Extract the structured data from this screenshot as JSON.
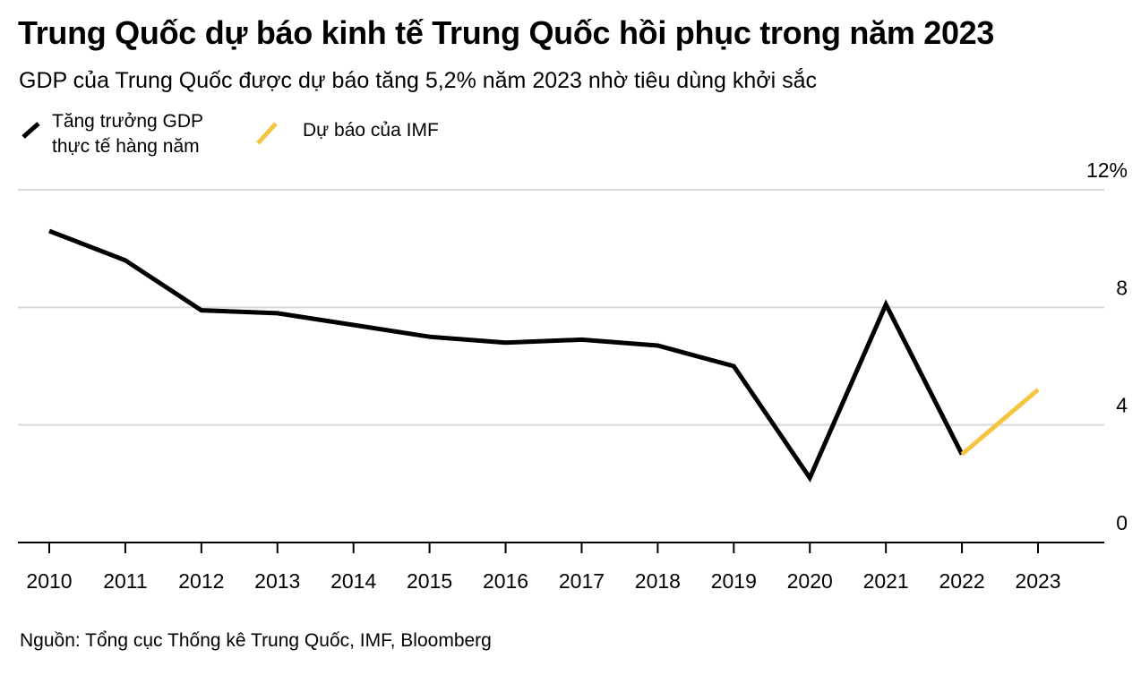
{
  "chart_data": {
    "type": "line",
    "title": "Trung Quốc dự báo kinh tế Trung Quốc hồi phục trong năm 2023",
    "subtitle": "GDP của Trung Quốc được dự báo tăng 5,2% năm 2023 nhờ tiêu dùng khởi sắc",
    "source": "Nguồn: Tổng cục Thống kê Trung Quốc, IMF, Bloomberg",
    "x": [
      "2010",
      "2011",
      "2012",
      "2013",
      "2014",
      "2015",
      "2016",
      "2017",
      "2018",
      "2019",
      "2020",
      "2021",
      "2022",
      "2023"
    ],
    "ylim": [
      0,
      12
    ],
    "yticks": [
      {
        "value": 0,
        "label": "0"
      },
      {
        "value": 4,
        "label": "4"
      },
      {
        "value": 8,
        "label": "8"
      },
      {
        "value": 12,
        "label": "12%"
      }
    ],
    "grid": true,
    "series": [
      {
        "name": "Tăng trưởng GDP thực tế hàng năm",
        "color": "#000000",
        "x": [
          "2010",
          "2011",
          "2012",
          "2013",
          "2014",
          "2015",
          "2016",
          "2017",
          "2018",
          "2019",
          "2020",
          "2021",
          "2022"
        ],
        "values": [
          10.6,
          9.6,
          7.9,
          7.8,
          7.4,
          7.0,
          6.8,
          6.9,
          6.7,
          6.0,
          2.2,
          8.1,
          3.0
        ]
      },
      {
        "name": "Dự báo của IMF",
        "color": "#F5C542",
        "x": [
          "2022",
          "2023"
        ],
        "values": [
          3.0,
          5.2
        ]
      }
    ],
    "legend": {
      "actual_line1": "Tăng trưởng GDP",
      "actual_line2": "thực tế hàng năm",
      "forecast": "Dự báo của IMF"
    }
  }
}
